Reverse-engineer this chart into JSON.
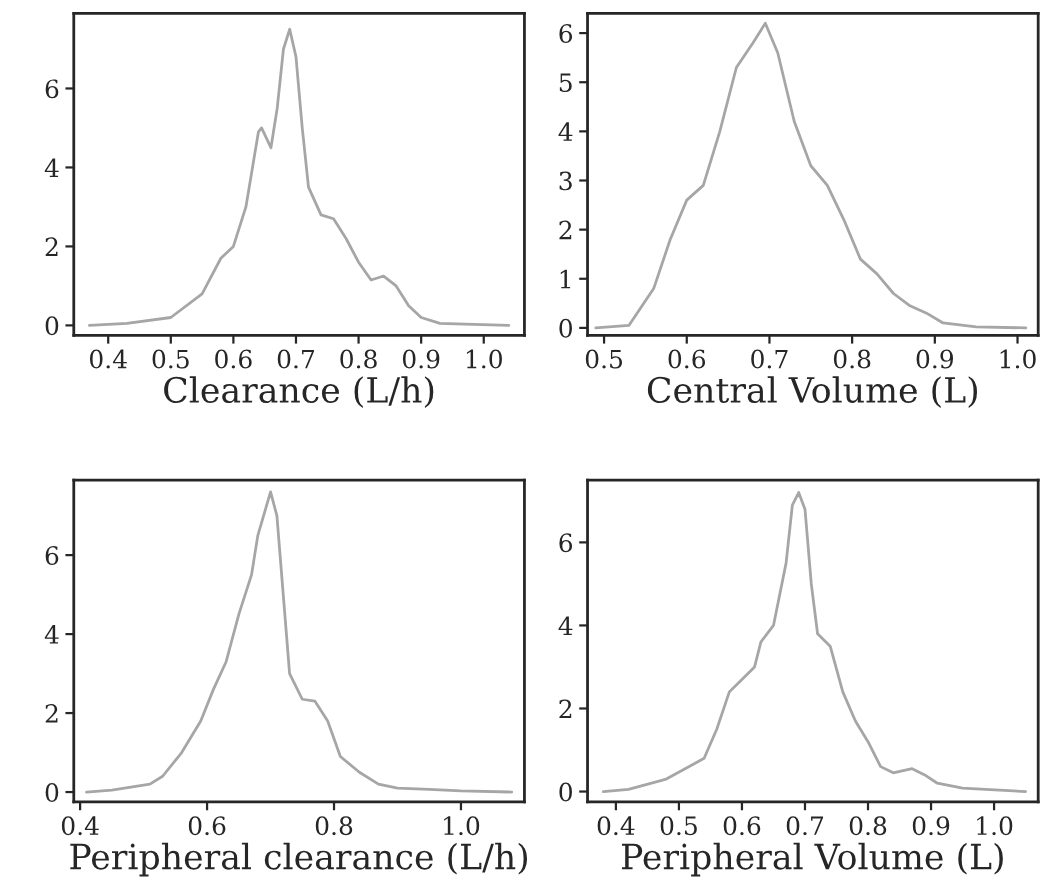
{
  "chart_data": [
    {
      "type": "line",
      "xlabel": "Clearance (L/h)",
      "xlim": [
        0.345,
        1.065
      ],
      "ylim": [
        -0.25,
        7.9
      ],
      "xticks": [
        {
          "value": 0.4,
          "label": "0.4"
        },
        {
          "value": 0.5,
          "label": "0.5"
        },
        {
          "value": 0.6,
          "label": "0.6"
        },
        {
          "value": 0.7,
          "label": "0.7"
        },
        {
          "value": 0.8,
          "label": "0.8"
        },
        {
          "value": 0.9,
          "label": "0.9"
        },
        {
          "value": 1.0,
          "label": "1.0"
        }
      ],
      "yticks": [
        0,
        2,
        4,
        6
      ],
      "grid": false,
      "legend": false,
      "series": [
        {
          "color": "#a6a6a6",
          "x": [
            0.37,
            0.43,
            0.5,
            0.55,
            0.58,
            0.6,
            0.62,
            0.64,
            0.645,
            0.66,
            0.67,
            0.68,
            0.69,
            0.7,
            0.71,
            0.72,
            0.74,
            0.76,
            0.78,
            0.8,
            0.82,
            0.84,
            0.86,
            0.88,
            0.9,
            0.93,
            0.97,
            1.04
          ],
          "values": [
            0,
            0.05,
            0.2,
            0.8,
            1.7,
            2.0,
            3.0,
            4.9,
            5.0,
            4.5,
            5.5,
            7.0,
            7.5,
            6.8,
            5.0,
            3.5,
            2.8,
            2.7,
            2.2,
            1.6,
            1.15,
            1.25,
            1.0,
            0.5,
            0.2,
            0.05,
            0.03,
            0
          ]
        }
      ]
    },
    {
      "type": "line",
      "xlabel": "Central Volume (L)",
      "xlim": [
        0.48,
        1.025
      ],
      "ylim": [
        -0.15,
        6.4
      ],
      "xticks": [
        {
          "value": 0.5,
          "label": "0.5"
        },
        {
          "value": 0.6,
          "label": "0.6"
        },
        {
          "value": 0.7,
          "label": "0.7"
        },
        {
          "value": 0.8,
          "label": "0.8"
        },
        {
          "value": 0.9,
          "label": "0.9"
        },
        {
          "value": 1.0,
          "label": "1.0"
        }
      ],
      "yticks": [
        0,
        1,
        2,
        3,
        4,
        5,
        6
      ],
      "grid": false,
      "legend": false,
      "series": [
        {
          "color": "#a6a6a6",
          "x": [
            0.49,
            0.53,
            0.56,
            0.58,
            0.6,
            0.62,
            0.64,
            0.66,
            0.68,
            0.695,
            0.71,
            0.73,
            0.75,
            0.77,
            0.79,
            0.81,
            0.83,
            0.85,
            0.87,
            0.89,
            0.91,
            0.95,
            1.01
          ],
          "values": [
            0,
            0.05,
            0.8,
            1.8,
            2.6,
            2.9,
            4.0,
            5.3,
            5.8,
            6.2,
            5.6,
            4.2,
            3.3,
            2.9,
            2.2,
            1.4,
            1.1,
            0.7,
            0.45,
            0.3,
            0.1,
            0.02,
            0
          ]
        }
      ]
    },
    {
      "type": "line",
      "xlabel": "Peripheral clearance (L/h)",
      "xlim": [
        0.39,
        1.1
      ],
      "ylim": [
        -0.25,
        7.9
      ],
      "xticks": [
        {
          "value": 0.4,
          "label": "0.4"
        },
        {
          "value": 0.6,
          "label": "0.6"
        },
        {
          "value": 0.8,
          "label": "0.8"
        },
        {
          "value": 1.0,
          "label": "1.0"
        }
      ],
      "yticks": [
        0,
        2,
        4,
        6
      ],
      "grid": false,
      "legend": false,
      "series": [
        {
          "color": "#a6a6a6",
          "x": [
            0.41,
            0.45,
            0.47,
            0.51,
            0.53,
            0.56,
            0.59,
            0.61,
            0.63,
            0.65,
            0.67,
            0.68,
            0.7,
            0.71,
            0.72,
            0.73,
            0.75,
            0.77,
            0.79,
            0.81,
            0.84,
            0.87,
            0.9,
            0.95,
            1.0,
            1.08
          ],
          "values": [
            0,
            0.05,
            0.1,
            0.2,
            0.4,
            1.0,
            1.8,
            2.6,
            3.3,
            4.5,
            5.5,
            6.5,
            7.6,
            7.0,
            5.0,
            3.0,
            2.35,
            2.3,
            1.8,
            0.9,
            0.5,
            0.2,
            0.1,
            0.07,
            0.03,
            0
          ]
        }
      ]
    },
    {
      "type": "line",
      "xlabel": "Peripheral Volume (L)",
      "xlim": [
        0.355,
        1.07
      ],
      "ylim": [
        -0.25,
        7.5
      ],
      "xticks": [
        {
          "value": 0.4,
          "label": "0.4"
        },
        {
          "value": 0.5,
          "label": "0.5"
        },
        {
          "value": 0.6,
          "label": "0.6"
        },
        {
          "value": 0.7,
          "label": "0.7"
        },
        {
          "value": 0.8,
          "label": "0.8"
        },
        {
          "value": 0.9,
          "label": "0.9"
        },
        {
          "value": 1.0,
          "label": "1.0"
        }
      ],
      "yticks": [
        0,
        2,
        4,
        6
      ],
      "grid": false,
      "legend": false,
      "series": [
        {
          "color": "#a6a6a6",
          "x": [
            0.38,
            0.42,
            0.48,
            0.54,
            0.56,
            0.58,
            0.6,
            0.62,
            0.63,
            0.65,
            0.67,
            0.68,
            0.69,
            0.7,
            0.71,
            0.72,
            0.74,
            0.76,
            0.78,
            0.8,
            0.82,
            0.84,
            0.87,
            0.89,
            0.91,
            0.95,
            1.05
          ],
          "values": [
            0,
            0.05,
            0.3,
            0.8,
            1.5,
            2.4,
            2.7,
            3.0,
            3.6,
            4.0,
            5.5,
            6.9,
            7.2,
            6.8,
            5.0,
            3.8,
            3.5,
            2.4,
            1.7,
            1.2,
            0.6,
            0.45,
            0.55,
            0.4,
            0.2,
            0.08,
            0
          ]
        }
      ]
    }
  ]
}
